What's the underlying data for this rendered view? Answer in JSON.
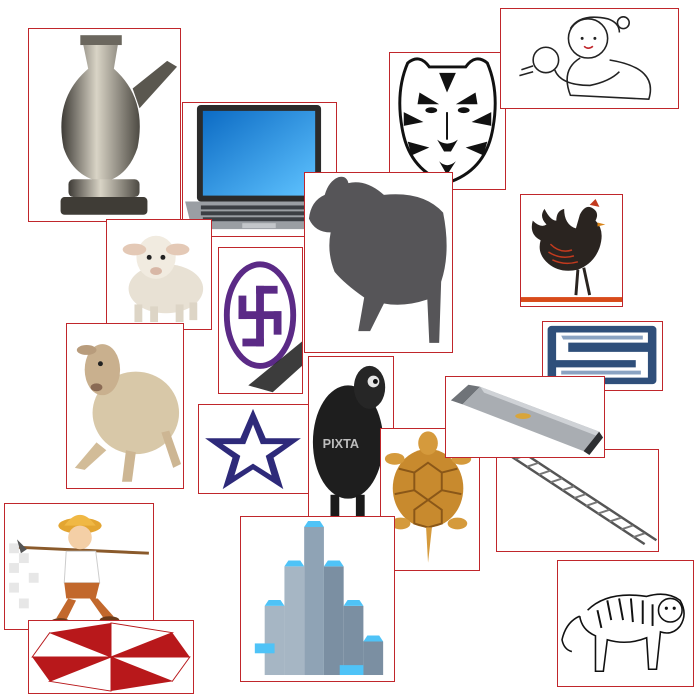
{
  "canvas": {
    "background": "#ffffff",
    "frame_color": "#c0262b"
  },
  "watermark": {
    "text": "PIXTA"
  },
  "tiles": [
    {
      "name": "kettle",
      "icon": "metal-kettle-icon"
    },
    {
      "name": "laptop",
      "icon": "laptop-icon"
    },
    {
      "name": "tiger-face",
      "icon": "tiger-face-icon"
    },
    {
      "name": "mother-baby",
      "icon": "mother-and-baby-icon"
    },
    {
      "name": "lamb-white",
      "icon": "lamb-icon"
    },
    {
      "name": "swastika",
      "icon": "swastika-symbol-icon"
    },
    {
      "name": "sheep-silhouette",
      "icon": "sheep-silhouette-icon"
    },
    {
      "name": "rooster",
      "icon": "rooster-icon"
    },
    {
      "name": "sheep-sitting",
      "icon": "sitting-sheep-icon"
    },
    {
      "name": "s-logo",
      "icon": "s-logo-icon"
    },
    {
      "name": "star",
      "icon": "star-icon"
    },
    {
      "name": "black-sheep",
      "icon": "black-sheep-icon"
    },
    {
      "name": "tortoise",
      "icon": "golden-tortoise-icon"
    },
    {
      "name": "usb-stick",
      "icon": "usb-stick-icon"
    },
    {
      "name": "ladder",
      "icon": "ladder-icon"
    },
    {
      "name": "farm-boy",
      "icon": "farm-boy-icon"
    },
    {
      "name": "staircase",
      "icon": "block-staircase-icon"
    },
    {
      "name": "umbrella",
      "icon": "umbrella-icon"
    },
    {
      "name": "tiger-walking",
      "icon": "walking-tiger-icon"
    }
  ]
}
